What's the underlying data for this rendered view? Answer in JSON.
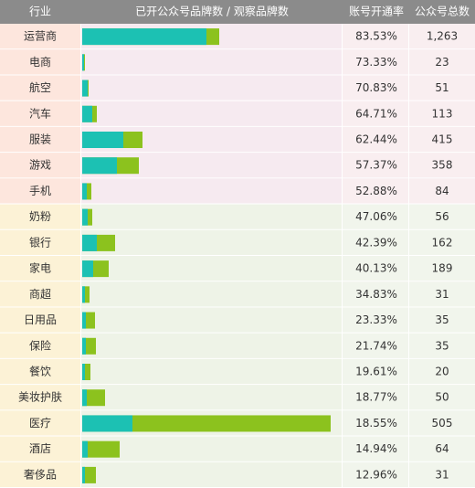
{
  "chart_data": {
    "type": "table-bar",
    "columns": [
      "行业",
      "已开公众号品牌数 / 观察品牌数",
      "账号开通率",
      "公众号总数"
    ],
    "categories": [
      "运营商",
      "电商",
      "航空",
      "汽车",
      "服装",
      "游戏",
      "手机",
      "奶粉",
      "银行",
      "家电",
      "商超",
      "日用品",
      "保险",
      "餐饮",
      "美妆护肤",
      "医疗",
      "酒店",
      "奢侈品"
    ],
    "xlim": [
      0,
      140
    ],
    "series": [
      {
        "color": "#8cc21e",
        "values": [
          75,
          1.5,
          3.5,
          8,
          33,
          31,
          5,
          5.5,
          18,
          14.5,
          4,
          7,
          7.5,
          4.5,
          12.5,
          136,
          20.5,
          7.5
        ]
      },
      {
        "color": "#1cc1b3",
        "values": [
          68,
          1,
          3,
          5.5,
          22.5,
          19,
          2.5,
          3,
          8,
          6,
          1.5,
          2,
          2,
          1.5,
          2.5,
          27.5,
          3,
          1.5
        ]
      }
    ],
    "rates": {
      "values": [
        83.53,
        73.33,
        70.83,
        64.71,
        62.44,
        57.37,
        52.88,
        47.06,
        42.39,
        40.13,
        34.83,
        23.33,
        21.74,
        19.61,
        18.77,
        18.55,
        14.94,
        12.96
      ],
      "value_labels": [
        "83.53%",
        "73.33%",
        "70.83%",
        "64.71%",
        "62.44%",
        "57.37%",
        "52.88%",
        "47.06%",
        "42.39%",
        "40.13%",
        "34.83%",
        "23.33%",
        "21.74%",
        "19.61%",
        "18.77%",
        "18.55%",
        "14.94%",
        "12.96%"
      ]
    },
    "counts": {
      "values": [
        1263,
        23,
        51,
        113,
        415,
        358,
        84,
        56,
        162,
        189,
        31,
        35,
        35,
        20,
        50,
        505,
        64,
        31
      ],
      "value_labels": [
        "1,263",
        "23",
        "51",
        "113",
        "415",
        "358",
        "84",
        "56",
        "162",
        "189",
        "31",
        "35",
        "35",
        "20",
        "50",
        "505",
        "64",
        "31"
      ]
    }
  }
}
